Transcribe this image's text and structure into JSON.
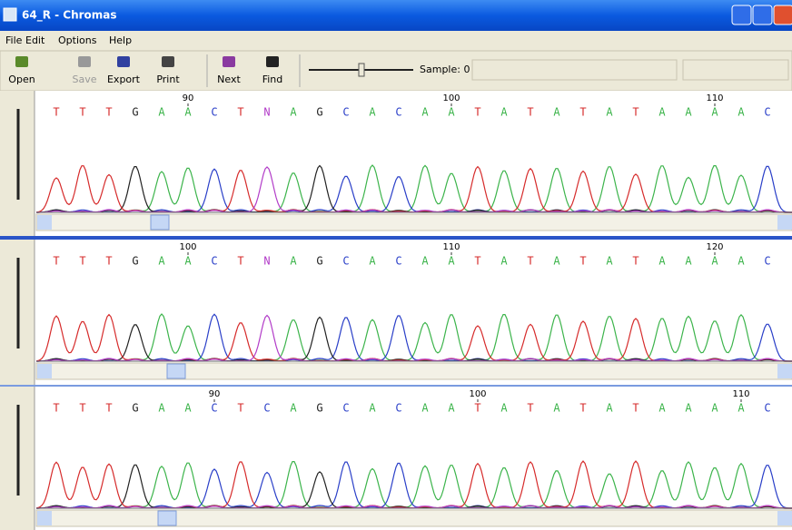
{
  "window": {
    "title": "64_R - Chromas"
  },
  "menu": [
    "File",
    "Edit",
    "Options",
    "Help"
  ],
  "toolbar": [
    "Open",
    "Save",
    "Export",
    "Print",
    "Next",
    "Find"
  ],
  "status": {
    "sample": "Sample: 0"
  },
  "panels": [
    {
      "bases": [
        "T",
        "T",
        "T",
        "G",
        "A",
        "A",
        "C",
        "T",
        "N",
        "A",
        "G",
        "C",
        "A",
        "C",
        "A",
        "A",
        "T",
        "A",
        "T",
        "A",
        "T",
        "A",
        "T",
        "A",
        "A",
        "A",
        "A",
        "C"
      ],
      "ticks": [
        90,
        100,
        110
      ]
    },
    {
      "bases": [
        "T",
        "T",
        "T",
        "G",
        "A",
        "A",
        "C",
        "T",
        "N",
        "A",
        "G",
        "C",
        "A",
        "C",
        "A",
        "A",
        "T",
        "A",
        "T",
        "A",
        "T",
        "A",
        "T",
        "A",
        "A",
        "A",
        "A",
        "C"
      ],
      "ticks": [
        100,
        110,
        120
      ]
    },
    {
      "bases": [
        "T",
        "T",
        "T",
        "G",
        "A",
        "A",
        "C",
        "T",
        "C",
        "A",
        "G",
        "C",
        "A",
        "C",
        "A",
        "A",
        "T",
        "A",
        "T",
        "A",
        "T",
        "A",
        "T",
        "A",
        "A",
        "A",
        "A",
        "C"
      ],
      "ticks": [
        90,
        100,
        110
      ]
    }
  ]
}
